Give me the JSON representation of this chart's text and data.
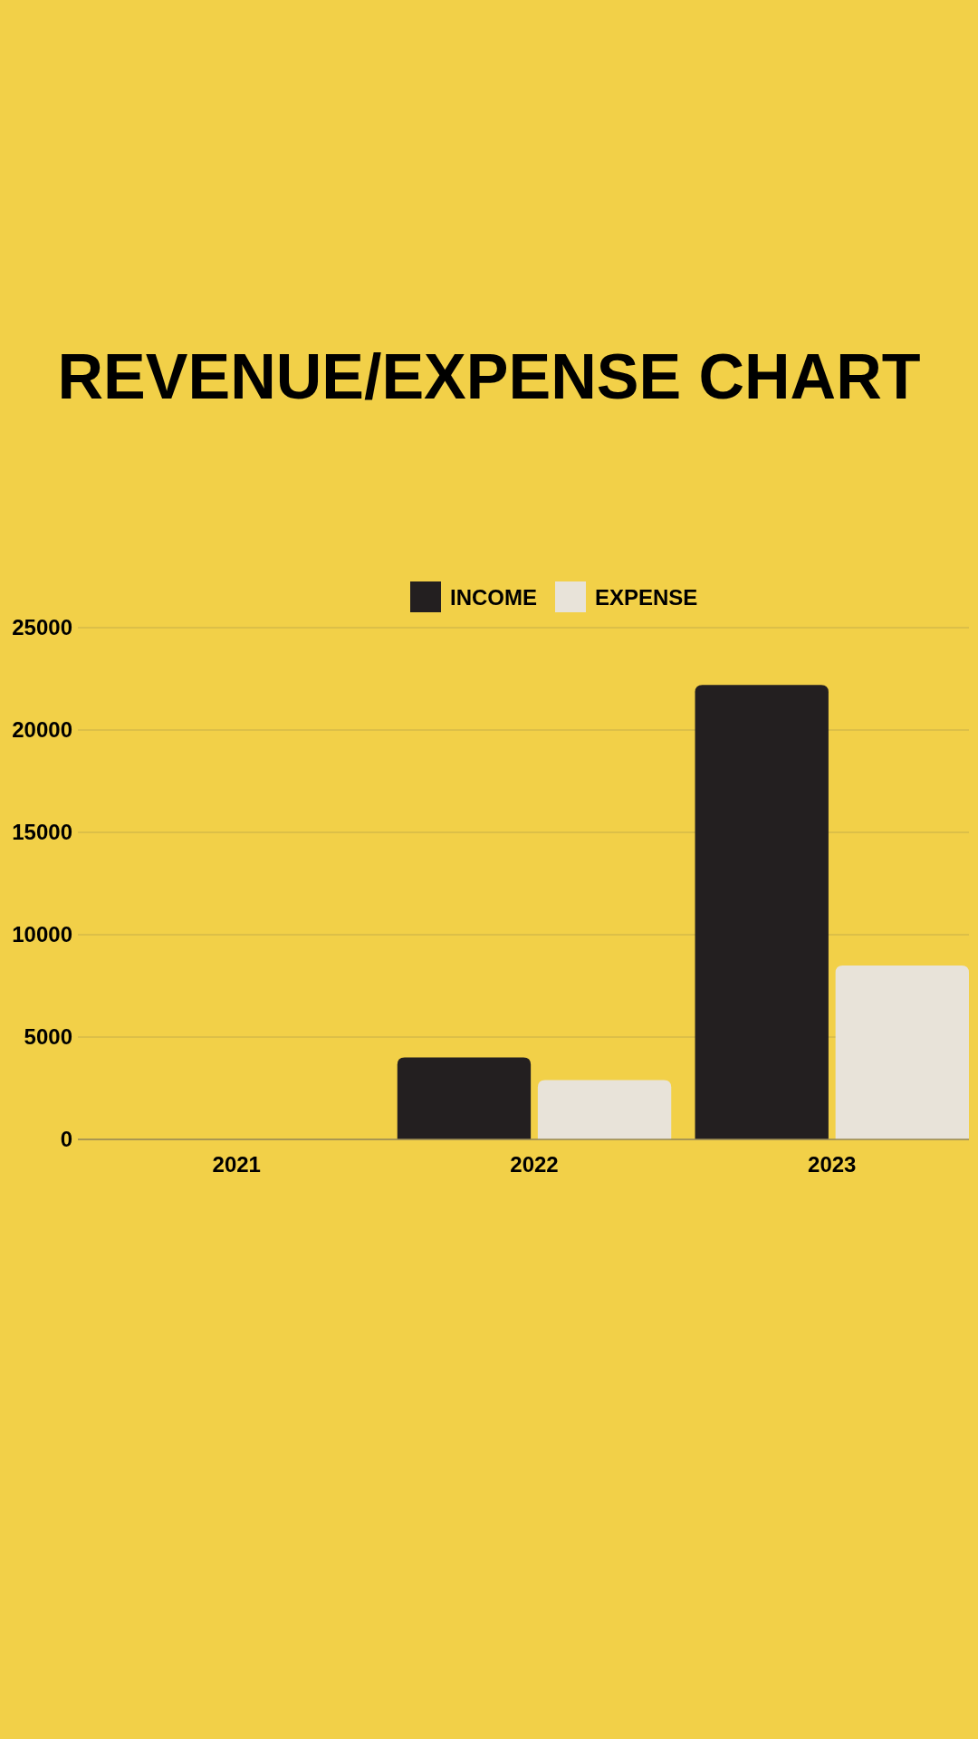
{
  "chart_data": {
    "type": "bar",
    "title": "REVENUE/EXPENSE CHART",
    "categories": [
      "2021",
      "2022",
      "2023"
    ],
    "series": [
      {
        "name": "INCOME",
        "color": "#231f20",
        "values": [
          null,
          4000,
          22200
        ]
      },
      {
        "name": "EXPENSE",
        "color": "#e8e3d9",
        "values": [
          null,
          2900,
          8500
        ]
      }
    ],
    "ylim": [
      0,
      25000
    ],
    "yticks": [
      0,
      5000,
      10000,
      15000,
      20000,
      25000
    ],
    "grid": "y",
    "legend": "top"
  }
}
